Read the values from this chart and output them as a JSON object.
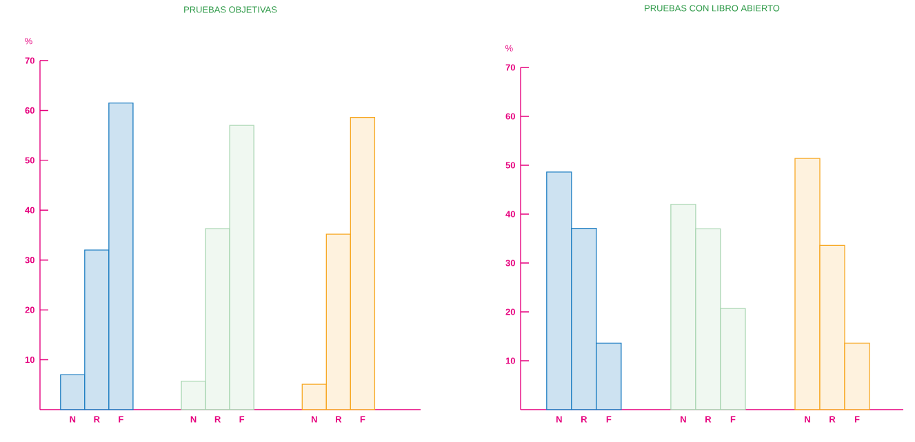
{
  "chart_data": [
    {
      "type": "bar",
      "title": "PRUEBAS OBJETIVAS",
      "ylabel": "%",
      "categories": [
        "N",
        "R",
        "F",
        null,
        null,
        "N",
        "R",
        "F",
        null,
        null,
        "N",
        "R",
        "F"
      ],
      "values": [
        7,
        32,
        61.5,
        null,
        null,
        5.7,
        36.3,
        57,
        null,
        null,
        5.1,
        35.2,
        58.6
      ],
      "colors": [
        "#1b7cc1",
        "#1b7cc1",
        "#1b7cc1",
        null,
        null,
        "#a9d6b2",
        "#a9d6b2",
        "#a9d6b2",
        null,
        null,
        "#f7a823",
        "#f7a823",
        "#f7a823"
      ],
      "ylim": [
        0,
        70
      ],
      "yticks": [
        10,
        20,
        30,
        40,
        50,
        60,
        70
      ]
    },
    {
      "type": "bar",
      "title": "PRUEBAS CON LIBRO ABIERTO",
      "ylabel": "%",
      "categories": [
        "N",
        "R",
        "F",
        null,
        null,
        "N",
        "R",
        "F",
        null,
        null,
        "N",
        "R",
        "F"
      ],
      "values": [
        48.6,
        37.1,
        13.6,
        null,
        null,
        42,
        37,
        20.7,
        null,
        null,
        51.4,
        33.6,
        13.6
      ],
      "colors": [
        "#1b7cc1",
        "#1b7cc1",
        "#1b7cc1",
        null,
        null,
        "#a9d6b2",
        "#a9d6b2",
        "#a9d6b2",
        null,
        null,
        "#f7a823",
        "#f7a823",
        "#f7a823"
      ],
      "ylim": [
        0,
        70
      ],
      "yticks": [
        10,
        20,
        30,
        40,
        50,
        60,
        70
      ]
    }
  ]
}
